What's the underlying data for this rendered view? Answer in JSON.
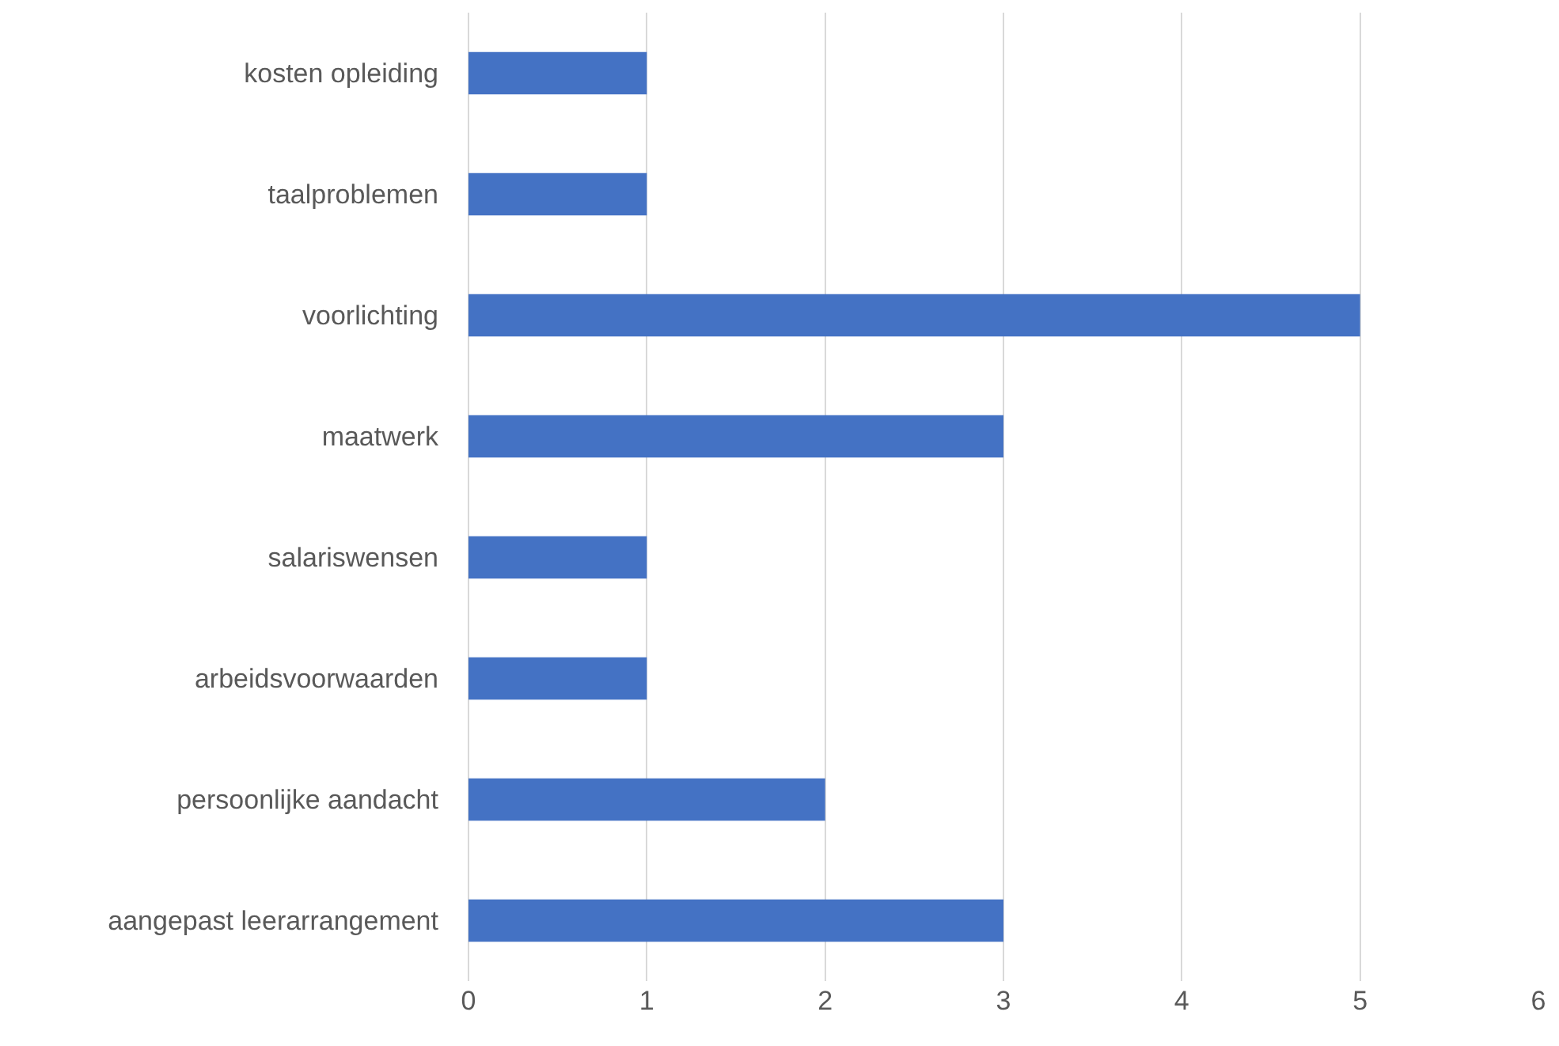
{
  "chart_data": {
    "type": "bar",
    "orientation": "horizontal",
    "categories": [
      "kosten opleiding",
      "taalproblemen",
      "voorlichting",
      "maatwerk",
      "salariswensen",
      "arbeidsvoorwaarden",
      "persoonlijke aandacht",
      "aangepast leerarrangement"
    ],
    "values": [
      1,
      1,
      5,
      3,
      1,
      1,
      2,
      3
    ],
    "color": "#4472c4",
    "xlim": [
      0,
      6
    ],
    "xticks": [
      0,
      1,
      2,
      3,
      4,
      5,
      6
    ],
    "grid": "x",
    "legend": false
  }
}
